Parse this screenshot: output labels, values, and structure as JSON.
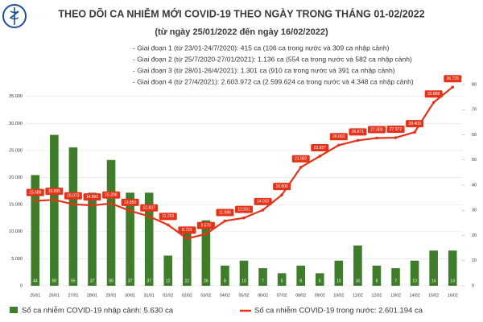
{
  "chart_data": {
    "type": "bar-line",
    "title": "THEO DÕI CA NHIỄM MỚI COVID-19 THEO NGÀY TRONG THÁNG 01-02/2022",
    "subtitle": "(từ ngày 25/01/2022 đến ngày 16/02/2022)",
    "notes": [
      "- Giai đoạn 1 (từ 23/01-24/7/2020): 415 ca (106 ca trong nước và 309 ca nhập cảnh)",
      "- Giai đoạn 2 (từ 25/7/2020-27/01/2021): 1.136 ca (554 ca trong nước và 582 ca nhập cảnh)",
      "- Giai đoạn 3 (từ 28/01-26/4/2021): 1.301 ca (910 ca trong nước và 391 ca nhập cảnh)",
      "- Giai đoạn 4 (từ 27/4/2021): 2.603.972 ca (2.599.624 ca trong nước và 4.348 ca nhập cảnh)"
    ],
    "categories": [
      "25/01",
      "26/01",
      "27/01",
      "28/01",
      "29/01",
      "30/01",
      "31/01",
      "01/02",
      "02/02",
      "03/02",
      "04/02",
      "05/02",
      "06/02",
      "07/02",
      "08/02",
      "09/02",
      "10/02",
      "11/02",
      "12/02",
      "13/02",
      "14/02",
      "15/02",
      "16/02"
    ],
    "series": [
      {
        "name": "Số ca nhiễm COVID-19 nhập cảnh: 5.630 ca",
        "color": "#3f7d2a",
        "axis": "y2",
        "values": [
          44,
          60,
          55,
          37,
          50,
          37,
          37,
          12,
          22,
          26,
          8,
          10,
          7,
          5,
          8,
          5,
          10,
          16,
          8,
          7,
          10,
          14,
          14
        ]
      },
      {
        "name": "Số ca nhiễm COVID-19 trong nước: 2.601.194 ca",
        "color": "#e5331a",
        "values": [
          15688,
          15895,
          15073,
          14860,
          15206,
          13850,
          12837,
          11253,
          8723,
          9570,
          11986,
          12551,
          14010,
          16800,
          21902,
          23957,
          26003,
          26871,
          27303,
          27372,
          28400,
          33888,
          36725
        ],
        "value_labels": [
          "15.688",
          "15.895",
          "15.073",
          "14.860",
          "15.206",
          "13.850",
          "12.837",
          "11.253",
          "8.723",
          "9.570",
          "11.986",
          "12.551",
          "14.010",
          "16.800",
          "21.902",
          "23.957",
          "26.003",
          "26.871",
          "27.303",
          "27.372",
          "28.400",
          "33.888",
          "36.725"
        ]
      }
    ],
    "ylim": [
      0,
      37200
    ],
    "yticks": [
      {
        "value": 0,
        "label": "0"
      },
      {
        "value": 5000,
        "label": "5.000"
      },
      {
        "value": 10000,
        "label": "10.000"
      },
      {
        "value": 15000,
        "label": "15.000"
      },
      {
        "value": 20000,
        "label": "20.000"
      },
      {
        "value": 25000,
        "label": "25.000"
      },
      {
        "value": 30000,
        "label": "30.000"
      },
      {
        "value": 35000,
        "label": "35.000"
      }
    ],
    "y2lim": [
      0,
      80
    ],
    "y2ticks": [
      0,
      10,
      20,
      30,
      40,
      50,
      60,
      70,
      80
    ],
    "grid": true
  }
}
